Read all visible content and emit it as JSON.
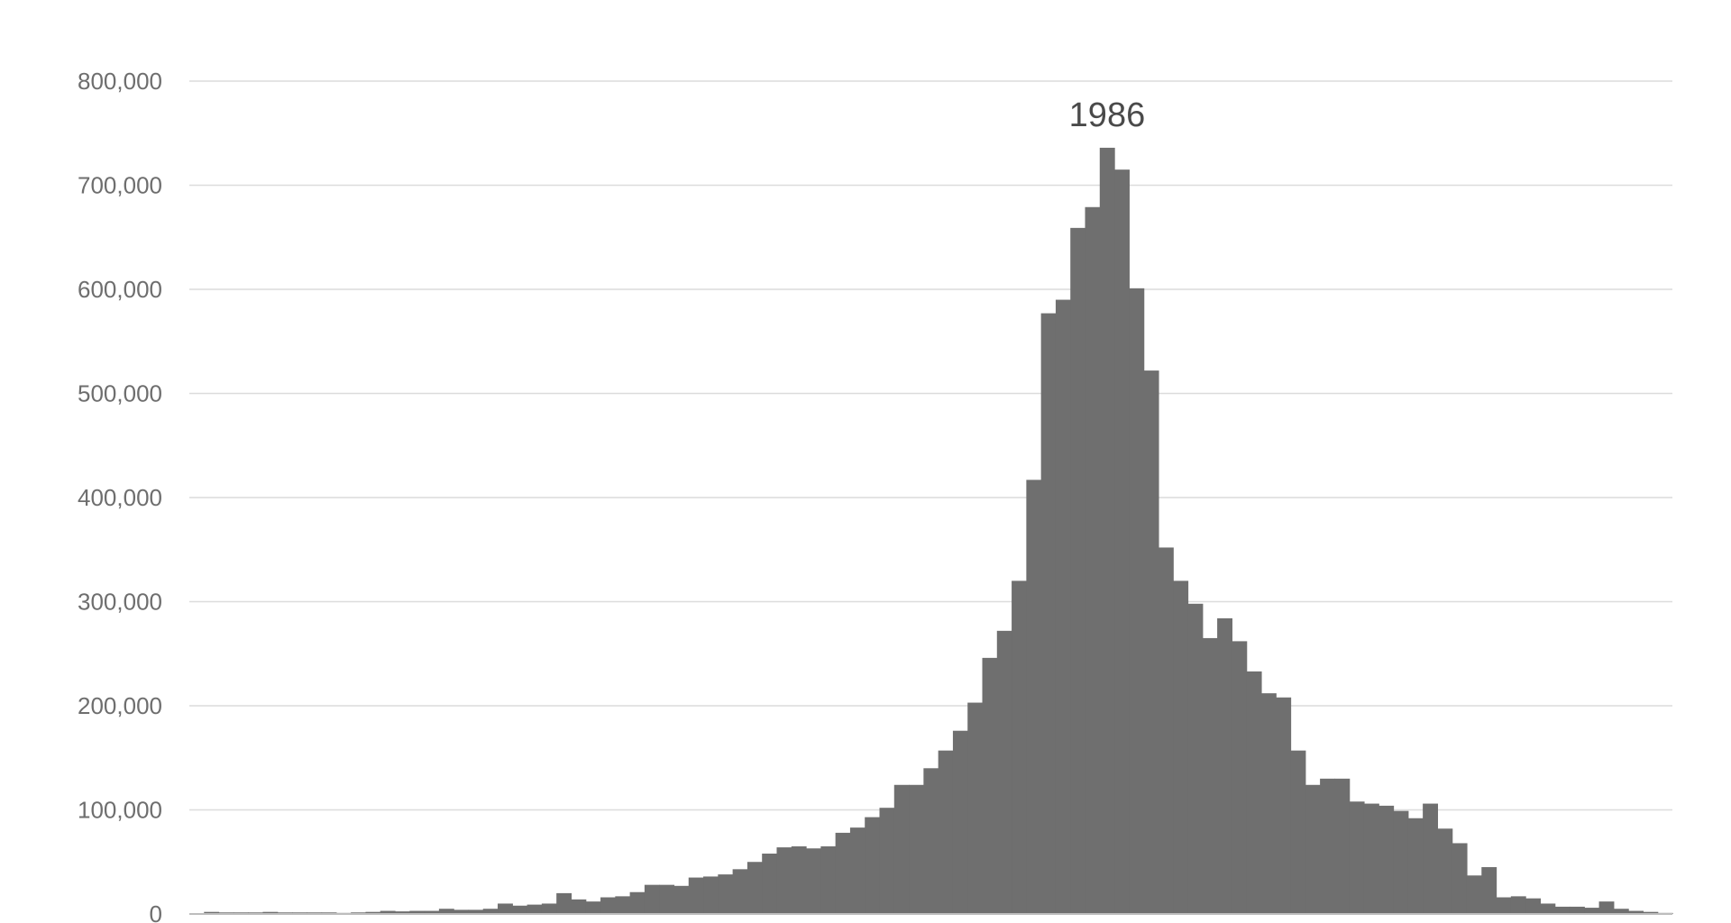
{
  "chart_data": {
    "type": "bar",
    "title": "",
    "xlabel": "",
    "ylabel": "",
    "ylim": [
      0,
      800000
    ],
    "yticks": [
      0,
      100000,
      200000,
      300000,
      400000,
      500000,
      600000,
      700000,
      800000
    ],
    "ytick_labels": [
      "0",
      "100,000",
      "200,000",
      "300,000",
      "400,000",
      "500,000",
      "600,000",
      "700,000",
      "800,000"
    ],
    "grid": true,
    "bar_color": "#6f6f6f",
    "annotation": {
      "label": "1986",
      "category_index": 62
    },
    "values": [
      0,
      2000,
      1500,
      1500,
      1500,
      2000,
      1500,
      1500,
      1500,
      1500,
      1000,
      1500,
      2000,
      3000,
      2500,
      3000,
      3000,
      5000,
      4000,
      4000,
      5000,
      10000,
      8000,
      9000,
      10000,
      20000,
      14000,
      12000,
      16000,
      17000,
      21000,
      28000,
      28000,
      27000,
      35000,
      36000,
      38000,
      43000,
      50000,
      58000,
      64000,
      65000,
      63000,
      65000,
      78000,
      83000,
      93000,
      102000,
      124000,
      124000,
      140000,
      157000,
      176000,
      203000,
      246000,
      272000,
      320000,
      417000,
      577000,
      590000,
      659000,
      679000,
      736000,
      715000,
      601000,
      522000,
      352000,
      320000,
      298000,
      265000,
      284000,
      262000,
      233000,
      212000,
      208000,
      157000,
      124000,
      130000,
      130000,
      108000,
      106000,
      104000,
      99000,
      92000,
      106000,
      82000,
      68000,
      37000,
      45000,
      16000,
      17000,
      15000,
      10000,
      7000,
      7000,
      6000,
      12000,
      5000,
      3000,
      2000,
      1000
    ]
  }
}
